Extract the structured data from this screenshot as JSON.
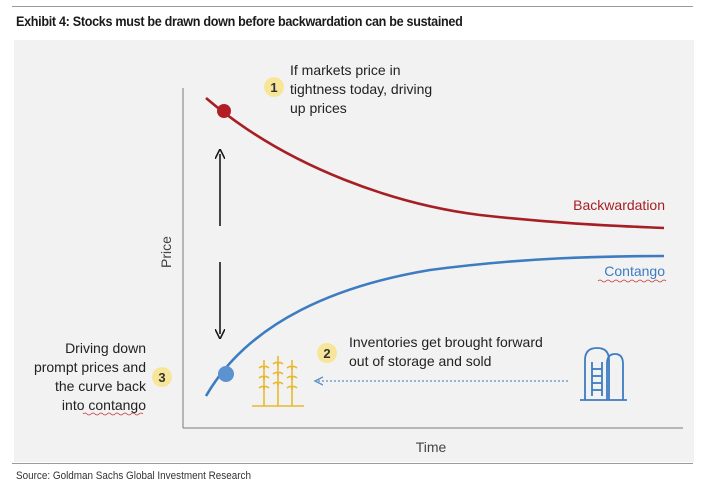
{
  "header": {
    "title": "Exhibit 4: Stocks must be drawn down before backwardation can be sustained"
  },
  "diagram": {
    "axes": {
      "y_label": "Price",
      "x_label": "Time"
    },
    "curves": {
      "backwardation": {
        "label": "Backwardation",
        "color": "#a51f24"
      },
      "contango": {
        "label": "Contango",
        "color": "#3d7cc1"
      }
    },
    "annotations": [
      {
        "number": "1",
        "lines": [
          "If markets price in",
          "tightness today, driving",
          "up prices"
        ]
      },
      {
        "number": "2",
        "lines": [
          "Inventories get brought forward",
          "out of storage and sold"
        ]
      },
      {
        "number": "3",
        "lines": [
          "Driving down",
          "prompt prices and",
          "the curve back",
          "into contango"
        ]
      }
    ],
    "badge_color": "#f7e69a",
    "icons": {
      "crop": "wheat-icon",
      "storage": "silo-icon"
    }
  },
  "footer": {
    "source": "Source: Goldman Sachs Global Investment Research"
  }
}
